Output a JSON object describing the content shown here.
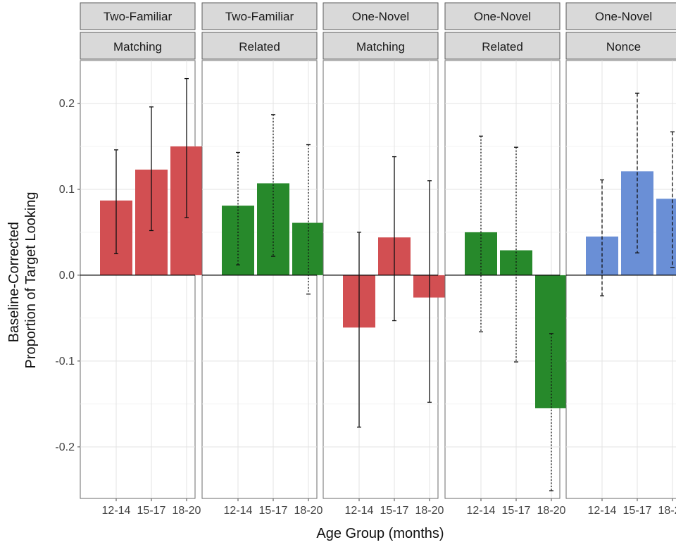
{
  "chart_data": {
    "type": "bar",
    "xlabel": "Age Group (months)",
    "ylabel_lines": [
      "Baseline-Corrected",
      "Proportion of Target Looking"
    ],
    "ylim": [
      -0.26,
      0.25
    ],
    "yticks": [
      -0.2,
      -0.1,
      0.0,
      0.1,
      0.2
    ],
    "ytick_labels": [
      "-0.2",
      "-0.1",
      "0.0",
      "0.1",
      "0.2"
    ],
    "categories": [
      "12-14",
      "15-17",
      "18-20"
    ],
    "grid": true,
    "colors": {
      "red": "#d24f52",
      "green": "#27892b",
      "blue": "#6a8fd6"
    },
    "panels": [
      {
        "strip_top": "Two-Familiar",
        "strip_bottom": "Matching",
        "color": "red",
        "error_style": "solid",
        "values": [
          0.087,
          0.123,
          0.15
        ],
        "err_low": [
          0.025,
          0.052,
          0.067
        ],
        "err_high": [
          0.146,
          0.196,
          0.229
        ]
      },
      {
        "strip_top": "Two-Familiar",
        "strip_bottom": "Related",
        "color": "green",
        "error_style": "dotted",
        "values": [
          0.081,
          0.107,
          0.061
        ],
        "err_low": [
          0.012,
          0.022,
          -0.022
        ],
        "err_high": [
          0.143,
          0.187,
          0.152
        ]
      },
      {
        "strip_top": "One-Novel",
        "strip_bottom": "Matching",
        "color": "red",
        "error_style": "solid",
        "values": [
          -0.061,
          0.044,
          -0.026
        ],
        "err_low": [
          -0.177,
          -0.053,
          -0.148
        ],
        "err_high": [
          0.05,
          0.138,
          0.11
        ]
      },
      {
        "strip_top": "One-Novel",
        "strip_bottom": "Related",
        "color": "green",
        "error_style": "dotted",
        "values": [
          0.05,
          0.029,
          -0.155
        ],
        "err_low": [
          -0.066,
          -0.101,
          -0.251
        ],
        "err_high": [
          0.162,
          0.149,
          -0.068
        ]
      },
      {
        "strip_top": "One-Novel",
        "strip_bottom": "Nonce",
        "color": "blue",
        "error_style": "dashed",
        "values": [
          0.045,
          0.121,
          0.089
        ],
        "err_low": [
          -0.024,
          0.026,
          0.009
        ],
        "err_high": [
          0.111,
          0.212,
          0.167
        ]
      }
    ]
  }
}
